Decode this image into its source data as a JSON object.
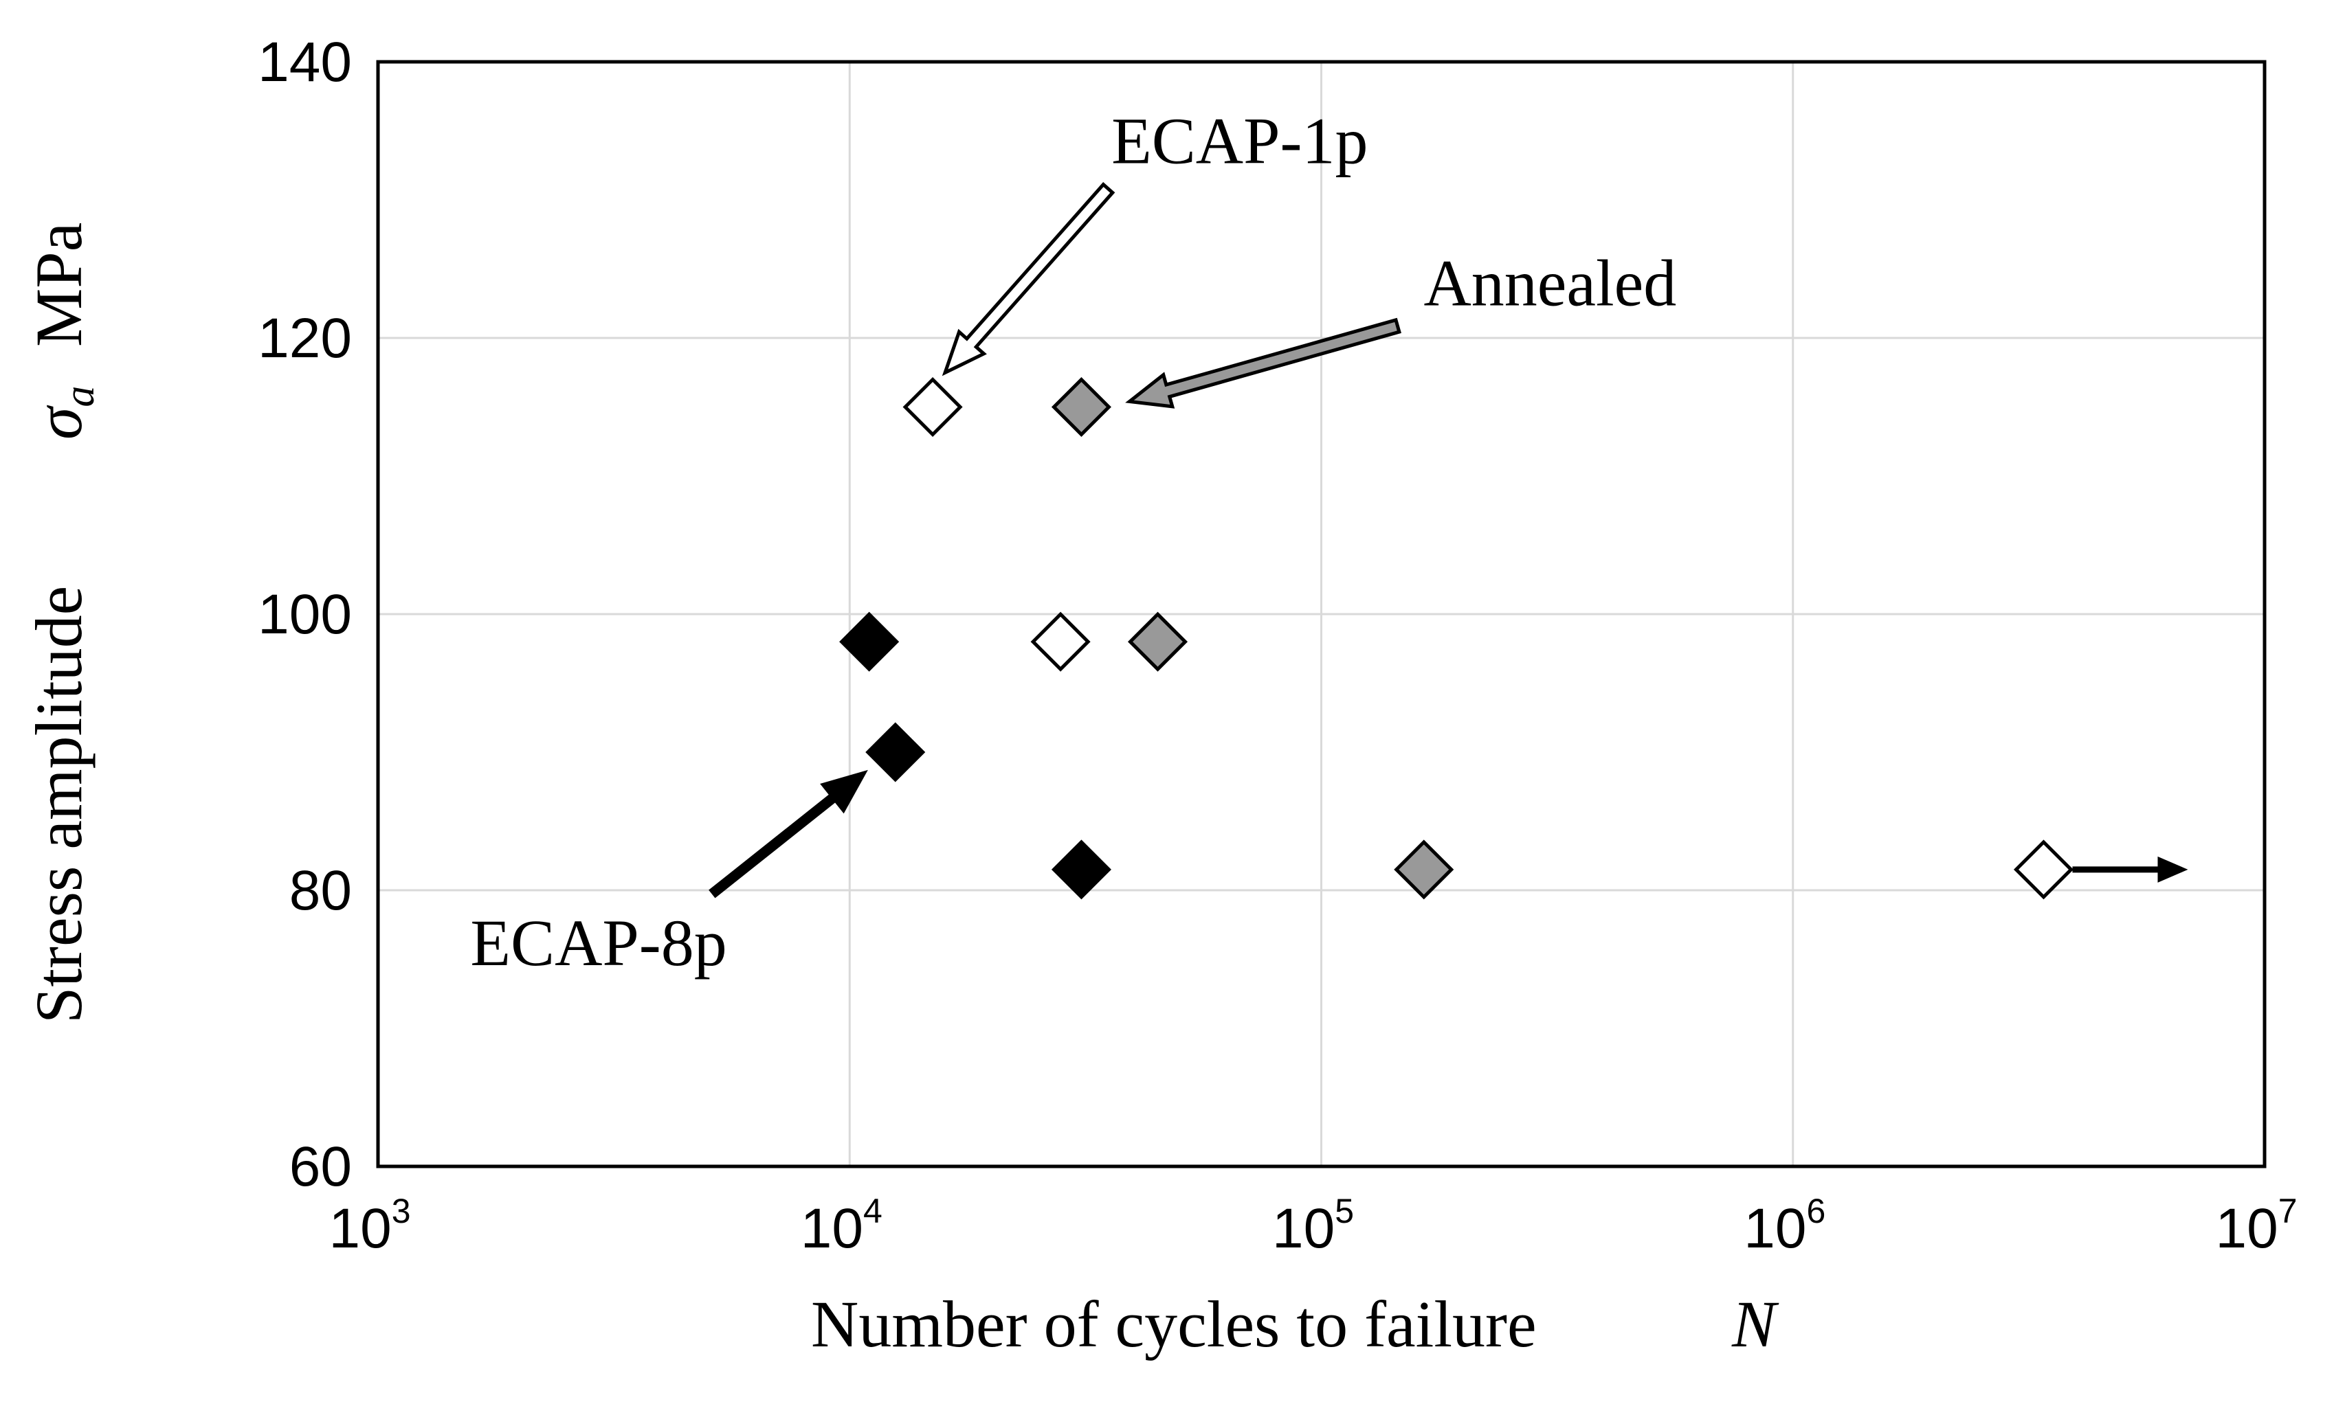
{
  "chart_data": {
    "type": "scatter",
    "title": "",
    "xlabel": "Number of cycles to failure",
    "xlabel_symbol": "N",
    "ylabel": "Stress amplitude",
    "ylabel_symbol": "σ",
    "ylabel_subscript": "a",
    "ylabel_unit": "MPa",
    "xscale": "log",
    "xlim": [
      1000,
      10000000
    ],
    "ylim": [
      60,
      140
    ],
    "grid": true,
    "x_ticks": [
      {
        "base": "10",
        "exp": "3",
        "value": 1000
      },
      {
        "base": "10",
        "exp": "4",
        "value": 10000
      },
      {
        "base": "10",
        "exp": "5",
        "value": 100000
      },
      {
        "base": "10",
        "exp": "6",
        "value": 1000000
      },
      {
        "base": "10",
        "exp": "7",
        "value": 10000000
      }
    ],
    "y_ticks": [
      "60",
      "80",
      "100",
      "120",
      "140"
    ],
    "series": [
      {
        "name": "ECAP-1p",
        "marker": "diamond",
        "fill": "#ffffff",
        "stroke": "#000000",
        "points": [
          {
            "x": 15000,
            "y": 115
          },
          {
            "x": 28000,
            "y": 98
          },
          {
            "x": 3400000,
            "y": 81.5,
            "runout": true
          }
        ]
      },
      {
        "name": "Annealed",
        "marker": "diamond",
        "fill": "#999999",
        "stroke": "#000000",
        "points": [
          {
            "x": 31000,
            "y": 115
          },
          {
            "x": 45000,
            "y": 98
          },
          {
            "x": 165000,
            "y": 81.5
          }
        ]
      },
      {
        "name": "ECAP-8p",
        "marker": "diamond",
        "fill": "#000000",
        "stroke": "#000000",
        "points": [
          {
            "x": 11000,
            "y": 98
          },
          {
            "x": 12500,
            "y": 90
          },
          {
            "x": 31000,
            "y": 81.5
          }
        ]
      }
    ],
    "annotations": [
      {
        "text": "ECAP-1p",
        "series": "ECAP-1p",
        "arrow_fill": "#ffffff",
        "target": {
          "x": 15000,
          "y": 115
        },
        "label_at": {
          "x": 45000,
          "y": 130
        }
      },
      {
        "text": "Annealed",
        "series": "Annealed",
        "arrow_fill": "#999999",
        "target": {
          "x": 31000,
          "y": 115
        },
        "label_at": {
          "x": 300000,
          "y": 120
        }
      },
      {
        "text": "ECAP-8p",
        "series": "ECAP-8p",
        "arrow_fill": "#000000",
        "target": {
          "x": 12500,
          "y": 90
        },
        "label_at": {
          "x": 5000,
          "y": 78
        }
      }
    ]
  }
}
